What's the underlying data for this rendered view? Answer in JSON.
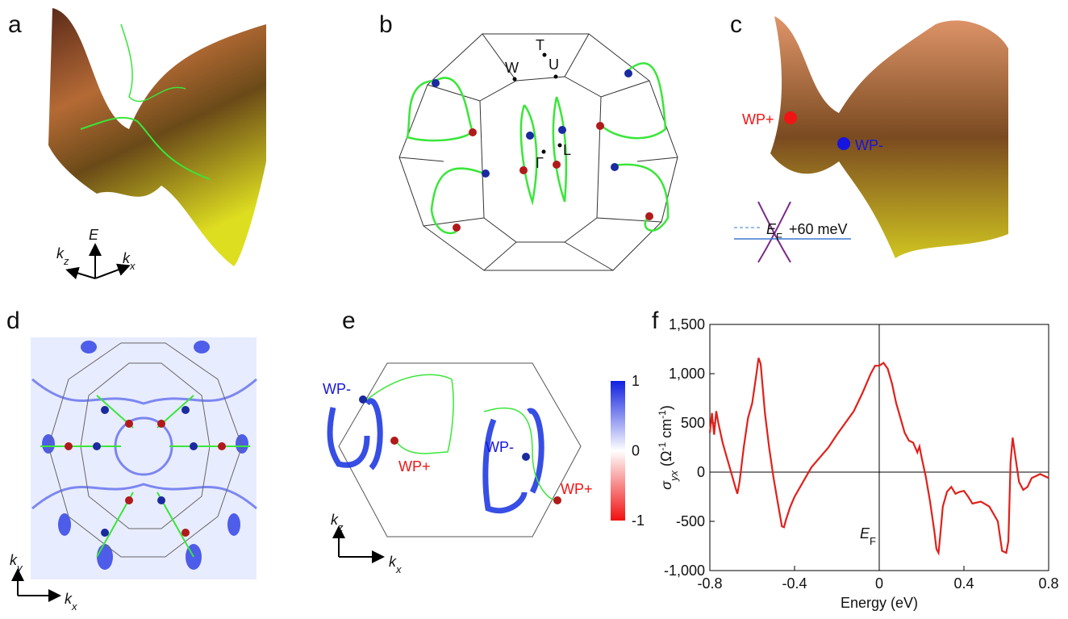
{
  "panel_a": {
    "label": "a",
    "energy_axis": [
      {
        "text": "E",
        "style": "italic"
      }
    ],
    "kz_axis": [
      {
        "text": "k",
        "style": "italic"
      },
      {
        "text": "z",
        "style": "italic-sub"
      }
    ],
    "kx_axis": [
      {
        "text": "k",
        "style": "italic"
      },
      {
        "text": "x",
        "style": "italic-sub"
      }
    ]
  },
  "panel_b": {
    "label": "b",
    "points": [
      "T",
      "U",
      "W",
      "Γ",
      "L"
    ]
  },
  "panel_c": {
    "label": "c",
    "weyl_plus": "WP+",
    "weyl_minus": "WP-",
    "fermi": [
      {
        "text": "E",
        "style": "italic"
      },
      {
        "text": "F",
        "style": "sub"
      }
    ],
    "shift": "+60 meV"
  },
  "panel_d": {
    "label": "d",
    "ky_axis": [
      {
        "text": "k",
        "style": "italic"
      },
      {
        "text": "y",
        "style": "italic-sub"
      }
    ],
    "kx_axis": [
      {
        "text": "k",
        "style": "italic"
      },
      {
        "text": "x",
        "style": "italic-sub"
      }
    ]
  },
  "panel_e": {
    "label": "e",
    "weyl_labels": [
      "WP-",
      "WP+",
      "WP-",
      "WP+"
    ],
    "colorbar_ticks": [
      1,
      0,
      -1
    ],
    "kz_axis": [
      {
        "text": "k",
        "style": "italic"
      },
      {
        "text": "z",
        "style": "italic-sub"
      }
    ],
    "kx_axis": [
      {
        "text": "k",
        "style": "italic"
      },
      {
        "text": "x",
        "style": "italic-sub"
      }
    ]
  },
  "panel_f": {
    "label": "f"
  },
  "chart_data": {
    "type": "line",
    "x_label": "Energy (eV)",
    "y_label": [
      {
        "text": "σ",
        "style": "italic"
      },
      {
        "text": "yx",
        "style": "italic-sub"
      },
      {
        "text": " (Ω"
      },
      {
        "text": "-1",
        "style": "sup"
      },
      {
        "text": " cm"
      },
      {
        "text": "-1",
        "style": "sup"
      },
      {
        "text": ")"
      }
    ],
    "annotation": [
      {
        "text": "E",
        "style": "italic"
      },
      {
        "text": "F",
        "style": "sub"
      }
    ],
    "zero_lines": true,
    "x": [
      -0.8,
      -0.79,
      -0.78,
      -0.77,
      -0.76,
      -0.74,
      -0.72,
      -0.7,
      -0.68,
      -0.67,
      -0.66,
      -0.64,
      -0.62,
      -0.6,
      -0.58,
      -0.57,
      -0.56,
      -0.54,
      -0.52,
      -0.5,
      -0.48,
      -0.46,
      -0.45,
      -0.44,
      -0.42,
      -0.4,
      -0.36,
      -0.32,
      -0.28,
      -0.24,
      -0.2,
      -0.16,
      -0.12,
      -0.08,
      -0.04,
      -0.02,
      0,
      0.02,
      0.04,
      0.06,
      0.08,
      0.1,
      0.12,
      0.14,
      0.16,
      0.18,
      0.19,
      0.2,
      0.22,
      0.24,
      0.26,
      0.27,
      0.28,
      0.29,
      0.3,
      0.32,
      0.34,
      0.36,
      0.38,
      0.4,
      0.42,
      0.44,
      0.48,
      0.52,
      0.56,
      0.58,
      0.6,
      0.61,
      0.62,
      0.63,
      0.64,
      0.66,
      0.68,
      0.7,
      0.72,
      0.74,
      0.76,
      0.78,
      0.8
    ],
    "series": [
      {
        "color": "#e0201b",
        "values": [
          400,
          600,
          380,
          620,
          500,
          300,
          150,
          0,
          -150,
          -220,
          -100,
          250,
          550,
          700,
          1000,
          1160,
          1100,
          600,
          250,
          -50,
          -300,
          -550,
          -560,
          -480,
          -350,
          -250,
          -100,
          50,
          150,
          250,
          380,
          500,
          620,
          800,
          1000,
          1080,
          1080,
          1110,
          1050,
          900,
          700,
          550,
          400,
          320,
          300,
          200,
          260,
          150,
          -50,
          -300,
          -600,
          -780,
          -820,
          -600,
          -350,
          -200,
          -150,
          -220,
          -200,
          -190,
          -250,
          -320,
          -300,
          -350,
          -500,
          -800,
          -820,
          -700,
          100,
          350,
          200,
          -100,
          -180,
          -150,
          -60,
          -40,
          -20,
          -40,
          -60
        ]
      }
    ],
    "xlim": [
      -0.8,
      0.8
    ],
    "ylim": [
      -1000,
      1500
    ],
    "xticks": [
      -0.8,
      -0.4,
      0,
      0.4,
      0.8
    ],
    "yticks": [
      {
        "value": -1000,
        "label": "-1,000"
      },
      -500,
      0,
      500,
      {
        "value": 1000,
        "label": "1,000"
      },
      {
        "value": 1500,
        "label": "1,500"
      }
    ]
  }
}
